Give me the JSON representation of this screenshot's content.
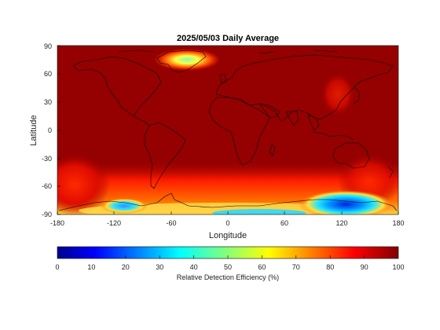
{
  "title": "2025/05/03 Daily Average",
  "xlabel": "Longitude",
  "ylabel": "Latitude",
  "x_ticks": [
    "-180",
    "-120",
    "-60",
    "0",
    "60",
    "120",
    "180"
  ],
  "y_ticks": [
    "90",
    "60",
    "30",
    "0",
    "-30",
    "-60",
    "-90"
  ],
  "colorbar": {
    "label": "Relative Detection Efficiency (%)",
    "ticks": [
      "0",
      "10",
      "20",
      "30",
      "40",
      "50",
      "60",
      "70",
      "80",
      "90",
      "100"
    ],
    "colormap": "jet",
    "min": 0,
    "max": 100
  },
  "map": {
    "projection": "equirectangular",
    "lon_range": [
      -180,
      180
    ],
    "lat_range": [
      -90,
      90
    ],
    "background_value_pct": 98,
    "coastlines": "black"
  }
}
